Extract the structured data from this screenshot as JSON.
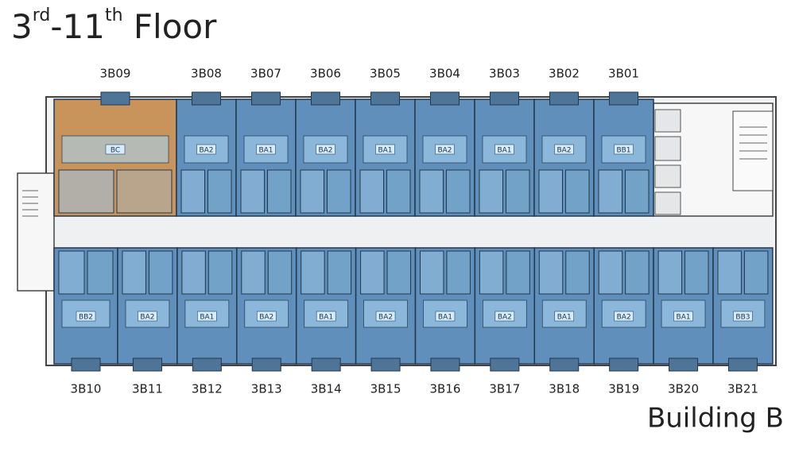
{
  "title": {
    "parts": [
      "3",
      "rd",
      "-11",
      "th",
      " Floor"
    ]
  },
  "building": "Building B",
  "unit_color": "#5f8fba",
  "top_units": [
    {
      "name": "3B09",
      "type": "BC",
      "color": "#c9935c"
    },
    {
      "name": "3B08",
      "type": "BA2"
    },
    {
      "name": "3B07",
      "type": "BA1"
    },
    {
      "name": "3B06",
      "type": "BA2"
    },
    {
      "name": "3B05",
      "type": "BA1"
    },
    {
      "name": "3B04",
      "type": "BA2"
    },
    {
      "name": "3B03",
      "type": "BA1"
    },
    {
      "name": "3B02",
      "type": "BA2"
    },
    {
      "name": "3B01",
      "type": "BB1"
    }
  ],
  "bottom_units": [
    {
      "name": "3B10",
      "type": "BB2"
    },
    {
      "name": "3B11",
      "type": "BA2"
    },
    {
      "name": "3B12",
      "type": "BA1"
    },
    {
      "name": "3B13",
      "type": "BA2"
    },
    {
      "name": "3B14",
      "type": "BA1"
    },
    {
      "name": "3B15",
      "type": "BA2"
    },
    {
      "name": "3B16",
      "type": "BA1"
    },
    {
      "name": "3B17",
      "type": "BA2"
    },
    {
      "name": "3B18",
      "type": "BA1"
    },
    {
      "name": "3B19",
      "type": "BA2"
    },
    {
      "name": "3B20",
      "type": "BA1"
    },
    {
      "name": "3B21",
      "type": "BB3"
    }
  ]
}
